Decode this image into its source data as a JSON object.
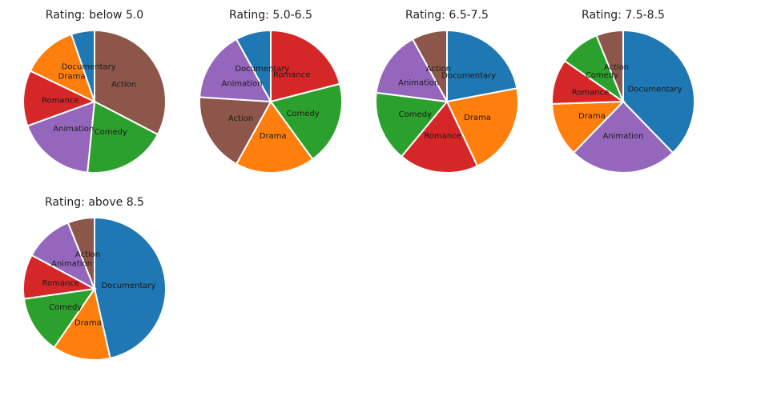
{
  "chart_data": [
    {
      "type": "pie",
      "title": "Rating: below 5.0",
      "slices": [
        {
          "label": "Action",
          "value": 31,
          "color": "#8c564b"
        },
        {
          "label": "Comedy",
          "value": 18,
          "color": "#2ca02c"
        },
        {
          "label": "Animation",
          "value": 17,
          "color": "#9467bd"
        },
        {
          "label": "Romance",
          "value": 12,
          "color": "#d62728"
        },
        {
          "label": "Drama",
          "value": 12,
          "color": "#ff7f0e"
        },
        {
          "label": "Documentary",
          "value": 5,
          "color": "#1f77b4"
        }
      ]
    },
    {
      "type": "pie",
      "title": "Rating: 5.0-6.5",
      "slices": [
        {
          "label": "Romance",
          "value": 21,
          "color": "#d62728"
        },
        {
          "label": "Comedy",
          "value": 19,
          "color": "#2ca02c"
        },
        {
          "label": "Drama",
          "value": 18,
          "color": "#ff7f0e"
        },
        {
          "label": "Action",
          "value": 18,
          "color": "#8c564b"
        },
        {
          "label": "Animation",
          "value": 16,
          "color": "#9467bd"
        },
        {
          "label": "Documentary",
          "value": 8,
          "color": "#1f77b4"
        }
      ]
    },
    {
      "type": "pie",
      "title": "Rating: 6.5-7.5",
      "slices": [
        {
          "label": "Documentary",
          "value": 22,
          "color": "#1f77b4"
        },
        {
          "label": "Drama",
          "value": 21,
          "color": "#ff7f0e"
        },
        {
          "label": "Romance",
          "value": 18,
          "color": "#d62728"
        },
        {
          "label": "Comedy",
          "value": 16,
          "color": "#2ca02c"
        },
        {
          "label": "Animation",
          "value": 15,
          "color": "#9467bd"
        },
        {
          "label": "Action",
          "value": 8,
          "color": "#8c564b"
        }
      ]
    },
    {
      "type": "pie",
      "title": "Rating: 7.5-8.5",
      "slices": [
        {
          "label": "Documentary",
          "value": 37,
          "color": "#1f77b4"
        },
        {
          "label": "Animation",
          "value": 24,
          "color": "#9467bd"
        },
        {
          "label": "Drama",
          "value": 12,
          "color": "#ff7f0e"
        },
        {
          "label": "Romance",
          "value": 10,
          "color": "#d62728"
        },
        {
          "label": "Comedy",
          "value": 9,
          "color": "#2ca02c"
        },
        {
          "label": "Action",
          "value": 6,
          "color": "#8c564b"
        }
      ]
    },
    {
      "type": "pie",
      "title": "Rating: above 8.5",
      "slices": [
        {
          "label": "Documentary",
          "value": 46,
          "color": "#1f77b4"
        },
        {
          "label": "Drama",
          "value": 13,
          "color": "#ff7f0e"
        },
        {
          "label": "Comedy",
          "value": 13,
          "color": "#2ca02c"
        },
        {
          "label": "Romance",
          "value": 10,
          "color": "#d62728"
        },
        {
          "label": "Animation",
          "value": 11,
          "color": "#9467bd"
        },
        {
          "label": "Action",
          "value": 6,
          "color": "#8c564b"
        }
      ]
    }
  ]
}
